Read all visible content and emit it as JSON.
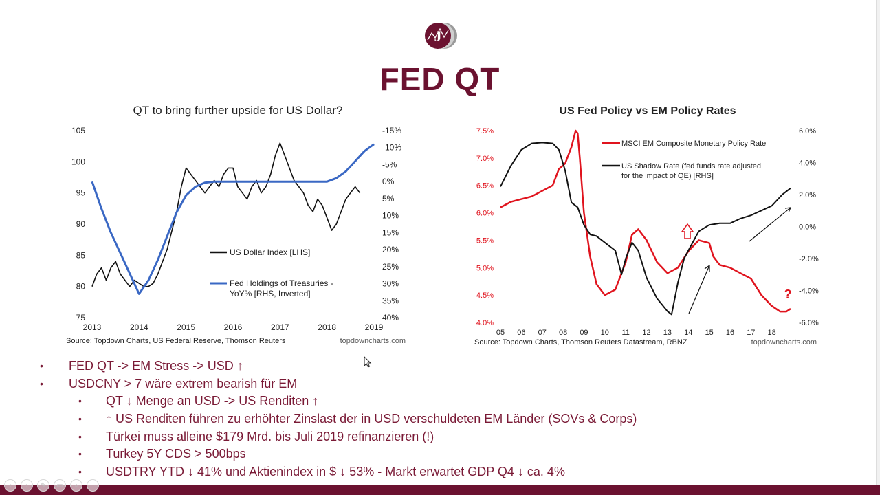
{
  "slide": {
    "title": "FED QT",
    "logo_letter": "J",
    "brand_color": "#6b1230"
  },
  "chart_data": [
    {
      "type": "line",
      "title": "QT to bring further upside for US Dollar?",
      "x_ticks": [
        "2013",
        "2014",
        "2015",
        "2016",
        "2017",
        "2018",
        "2019"
      ],
      "xlim": [
        2013,
        2019
      ],
      "y_left_ticks": [
        "105",
        "100",
        "95",
        "90",
        "85",
        "80",
        "75"
      ],
      "y_left_range": [
        75,
        105
      ],
      "y_right_ticks": [
        "-15%",
        "-10%",
        "-5%",
        "0%",
        "5%",
        "10%",
        "15%",
        "20%",
        "25%",
        "30%",
        "35%",
        "40%"
      ],
      "y_right_range": [
        -15,
        40
      ],
      "y_right_inverted": true,
      "legend": [
        "US Dollar Index [LHS]",
        "Fed Holdings of Treasuries -",
        "YoY% [RHS, Inverted]"
      ],
      "source": "Source: Topdown Charts, US Federal Reserve, Thomson Reuters",
      "watermark": "topdowncharts.com",
      "series": [
        {
          "name": "US Dollar Index [LHS]",
          "axis": "left",
          "color": "#111111",
          "x": [
            2013.0,
            2013.1,
            2013.2,
            2013.3,
            2013.4,
            2013.5,
            2013.6,
            2013.7,
            2013.8,
            2013.9,
            2014.0,
            2014.1,
            2014.2,
            2014.3,
            2014.4,
            2014.5,
            2014.6,
            2014.7,
            2014.8,
            2014.9,
            2015.0,
            2015.1,
            2015.2,
            2015.3,
            2015.4,
            2015.5,
            2015.6,
            2015.7,
            2015.8,
            2015.9,
            2016.0,
            2016.1,
            2016.2,
            2016.3,
            2016.4,
            2016.5,
            2016.6,
            2016.7,
            2016.8,
            2016.9,
            2017.0,
            2017.1,
            2017.2,
            2017.3,
            2017.4,
            2017.5,
            2017.6,
            2017.7,
            2017.8,
            2017.9,
            2018.0,
            2018.1,
            2018.2,
            2018.3,
            2018.4,
            2018.5,
            2018.6,
            2018.7
          ],
          "values": [
            80,
            82,
            83,
            81,
            83,
            84,
            82,
            81,
            80,
            81,
            80.5,
            80,
            80,
            80.5,
            82,
            84,
            86,
            89,
            92,
            96,
            99,
            98,
            97,
            96,
            95,
            96,
            97,
            96,
            98,
            99,
            99,
            96,
            95,
            94,
            96,
            97,
            95,
            96,
            98,
            101,
            103,
            101,
            99,
            97,
            96,
            95,
            93,
            92,
            94,
            93,
            91,
            89,
            90,
            92,
            94,
            95,
            96,
            95
          ]
        },
        {
          "name": "Fed Holdings of Treasuries - YoY% [RHS, Inverted]",
          "axis": "right",
          "color": "#3a68c4",
          "x": [
            2013.0,
            2013.2,
            2013.4,
            2013.6,
            2013.8,
            2014.0,
            2014.2,
            2014.4,
            2014.6,
            2014.8,
            2015.0,
            2015.2,
            2015.4,
            2015.6,
            2015.8,
            2016.0,
            2016.5,
            2017.0,
            2017.5,
            2018.0,
            2018.2,
            2018.4,
            2018.6,
            2018.8,
            2019.0
          ],
          "values": [
            0,
            8,
            15,
            21,
            27,
            33,
            29,
            23,
            16,
            9,
            4,
            1.5,
            0.3,
            0,
            0,
            0,
            0,
            0,
            0,
            0,
            -1,
            -3,
            -6,
            -9,
            -11
          ]
        }
      ]
    },
    {
      "type": "line",
      "title": "US Fed Policy vs EM Policy Rates",
      "x_ticks": [
        "05",
        "06",
        "07",
        "08",
        "09",
        "10",
        "11",
        "12",
        "13",
        "14",
        "15",
        "16",
        "17",
        "18"
      ],
      "xlim": [
        2005,
        2018.9
      ],
      "y_left_ticks": [
        "7.5%",
        "7.0%",
        "6.5%",
        "6.0%",
        "5.5%",
        "5.0%",
        "4.5%",
        "4.0%"
      ],
      "y_left_range": [
        4.0,
        7.5
      ],
      "y_right_ticks": [
        "6.0%",
        "4.0%",
        "2.0%",
        "0.0%",
        "-2.0%",
        "-4.0%",
        "-6.0%"
      ],
      "y_right_range": [
        -6.0,
        6.0
      ],
      "legend": [
        "MSCI EM Composite Monetary Policy Rate",
        "US Shadow Rate (fed funds rate adjusted",
        "for the impact of QE) [RHS]"
      ],
      "annotations": [
        "?"
      ],
      "source": "Source: Topdown Charts, Thomson Reuters Datastream, RBNZ",
      "watermark": "topdowncharts.com",
      "series": [
        {
          "name": "MSCI EM Composite Monetary Policy Rate",
          "axis": "left",
          "color": "#e0141e",
          "x": [
            2005.0,
            2005.5,
            2006.0,
            2006.5,
            2007.0,
            2007.5,
            2007.8,
            2008.1,
            2008.4,
            2008.6,
            2008.7,
            2008.8,
            2009.0,
            2009.3,
            2009.6,
            2010.0,
            2010.5,
            2011.0,
            2011.3,
            2011.6,
            2012.0,
            2012.5,
            2013.0,
            2013.5,
            2014.0,
            2014.5,
            2015.0,
            2015.2,
            2015.5,
            2016.0,
            2016.5,
            2017.0,
            2017.5,
            2018.0,
            2018.4,
            2018.7,
            2018.9
          ],
          "values": [
            6.1,
            6.2,
            6.25,
            6.3,
            6.4,
            6.5,
            6.8,
            6.9,
            7.2,
            7.5,
            7.45,
            7.0,
            6.0,
            5.2,
            4.7,
            4.5,
            4.6,
            5.1,
            5.6,
            5.7,
            5.5,
            5.1,
            4.9,
            5.0,
            5.3,
            5.5,
            5.45,
            5.2,
            5.05,
            5.0,
            4.9,
            4.8,
            4.5,
            4.3,
            4.2,
            4.2,
            4.25
          ]
        },
        {
          "name": "US Shadow Rate [RHS]",
          "axis": "right",
          "color": "#111111",
          "x": [
            2005.0,
            2005.5,
            2006.0,
            2006.5,
            2007.0,
            2007.5,
            2007.8,
            2008.1,
            2008.4,
            2008.7,
            2009.0,
            2009.3,
            2009.6,
            2010.0,
            2010.5,
            2010.8,
            2011.0,
            2011.3,
            2011.6,
            2012.0,
            2012.5,
            2013.0,
            2013.2,
            2013.5,
            2013.8,
            2014.0,
            2014.5,
            2015.0,
            2015.5,
            2016.0,
            2016.5,
            2017.0,
            2017.5,
            2018.0,
            2018.5,
            2018.9
          ],
          "values": [
            2.5,
            3.8,
            4.8,
            5.2,
            5.25,
            5.2,
            4.8,
            3.5,
            1.5,
            1.2,
            0.1,
            -0.5,
            -0.6,
            -1.0,
            -1.5,
            -3.0,
            -2.0,
            -1.0,
            -1.5,
            -3.2,
            -4.5,
            -5.3,
            -5.5,
            -3.5,
            -2.0,
            -1.5,
            -0.3,
            0.1,
            0.2,
            0.2,
            0.5,
            0.7,
            1.0,
            1.3,
            2.0,
            2.4
          ]
        }
      ]
    }
  ],
  "bullets": [
    {
      "level": 1,
      "marker": "•",
      "text": "FED QT -> EM Stress -> USD ↑"
    },
    {
      "level": 1,
      "marker": "•",
      "text": "USDCNY > 7 wäre extrem bearish für EM"
    },
    {
      "level": 2,
      "marker": "•",
      "text": "QT ↓ Menge an USD -> US Renditen ↑"
    },
    {
      "level": 2,
      "marker": "•",
      "text": "↑ US Renditen führen zu erhöhter Zinslast der in USD verschuldeten EM Länder (SOVs & Corps)"
    },
    {
      "level": 2,
      "marker": "•",
      "text": "Türkei muss alleine $179 Mrd. bis Juli 2019 refinanzieren (!)"
    },
    {
      "level": 2,
      "marker": "•",
      "text": "Turkey 5Y CDS > 500bps"
    },
    {
      "level": 2,
      "marker": "•",
      "text": "USDTRY YTD ↓ 41% und Aktienindex in $ ↓ 53% - Markt erwartet GDP Q4 ↓ ca. 4%"
    }
  ],
  "nav_controls": [
    "back-icon",
    "forward-icon",
    "pen-icon",
    "slides-icon",
    "zoom-icon",
    "more-icon"
  ]
}
